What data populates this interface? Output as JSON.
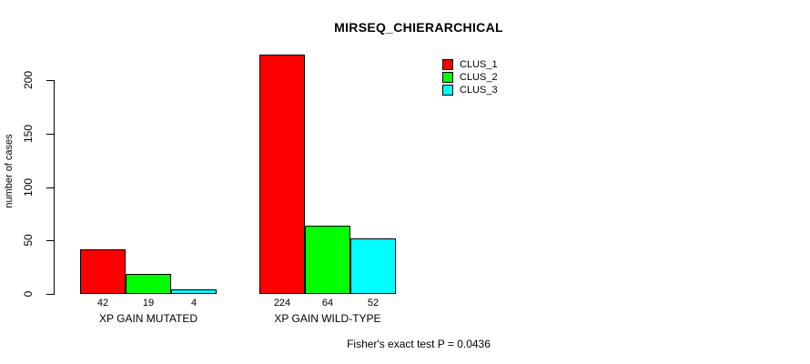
{
  "title": "MIRSEQ_CHIERARCHICAL",
  "footer": "Fisher's exact test P = 0.0436",
  "chart_data": {
    "type": "bar",
    "title": "MIRSEQ_CHIERARCHICAL",
    "xlabel": "",
    "ylabel": "number of cases",
    "ylim": [
      0,
      230
    ],
    "yticks": [
      0,
      50,
      100,
      150,
      200
    ],
    "grid": false,
    "legend_position": "top-right",
    "bar_value_labels": true,
    "categories": [
      "XP GAIN MUTATED",
      "XP GAIN WILD-TYPE"
    ],
    "series": [
      {
        "name": "CLUS_1",
        "color": "#ff0000",
        "values": [
          42,
          224
        ]
      },
      {
        "name": "CLUS_2",
        "color": "#00ff00",
        "values": [
          19,
          64
        ]
      },
      {
        "name": "CLUS_3",
        "color": "#00ffff",
        "values": [
          4,
          52
        ]
      }
    ],
    "annotation": "Fisher's exact test P = 0.0436",
    "bar_border_color": "#000000",
    "background_color": "#ffffff"
  }
}
